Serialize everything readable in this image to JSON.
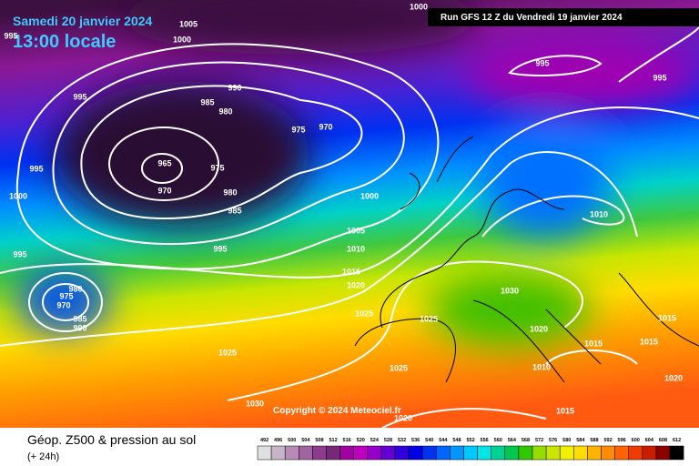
{
  "header": {
    "date": "Samedi 20 janvier 2024",
    "time": "13:00 locale",
    "run": "Run GFS 12 Z du Vendredi 19 janvier 2024"
  },
  "copyright": "Copyright © 2024 Meteociel.fr",
  "footer": {
    "title": "Géop. Z500 & pression au sol",
    "subtitle": "(+ 24h)"
  },
  "scale": {
    "values": [
      492,
      496,
      500,
      504,
      508,
      512,
      516,
      520,
      524,
      528,
      532,
      536,
      540,
      544,
      548,
      552,
      556,
      560,
      564,
      568,
      572,
      576,
      580,
      584,
      588,
      592,
      596,
      600,
      604,
      608,
      612
    ],
    "colors": [
      "#e0e0e0",
      "#c8b4c8",
      "#b48cb4",
      "#a064a0",
      "#8c3c8c",
      "#782878",
      "#a000a0",
      "#c000c0",
      "#9600c8",
      "#6400d2",
      "#3200dc",
      "#0000e6",
      "#0032f0",
      "#0064ff",
      "#0096ff",
      "#00c8ff",
      "#00e6e6",
      "#00d296",
      "#00c850",
      "#32c800",
      "#96dc00",
      "#c8e600",
      "#f0f000",
      "#ffdc00",
      "#ffb400",
      "#ff8c00",
      "#ff6400",
      "#f03c00",
      "#c81e00",
      "#8c0000",
      "#000000"
    ]
  },
  "isobars": [
    1005,
    1000,
    995,
    990,
    985,
    980,
    975,
    970,
    965,
    975,
    970,
    980,
    985,
    995,
    1000,
    995,
    995,
    1000,
    1005,
    1010,
    1015,
    1020,
    980,
    975,
    970,
    985,
    990,
    1025,
    1025,
    1025,
    1025,
    1030,
    1020,
    1015,
    1015,
    1015,
    1010,
    1010,
    1020,
    1015,
    1020,
    1000,
    995,
    995,
    995,
    1030
  ]
}
